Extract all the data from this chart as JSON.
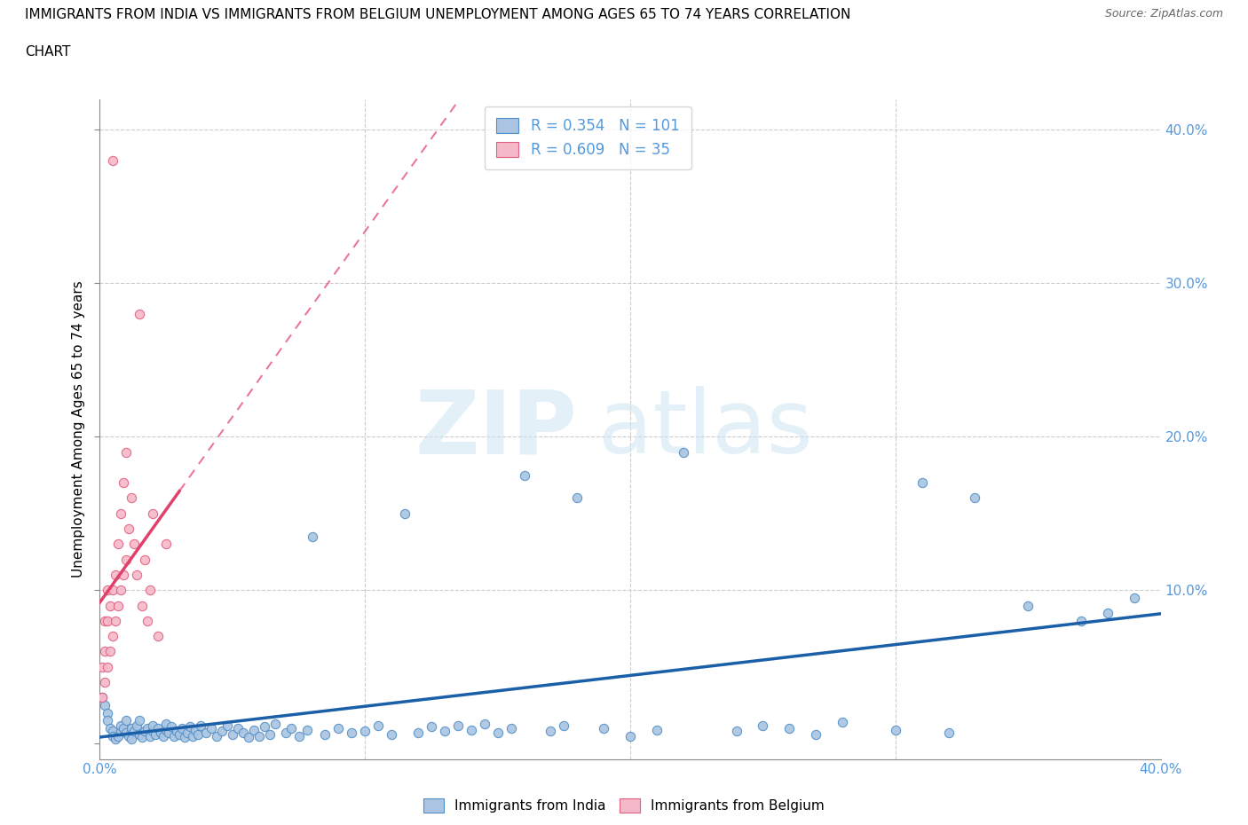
{
  "title_line1": "IMMIGRANTS FROM INDIA VS IMMIGRANTS FROM BELGIUM UNEMPLOYMENT AMONG AGES 65 TO 74 YEARS CORRELATION",
  "title_line2": "CHART",
  "source_text": "Source: ZipAtlas.com",
  "ylabel": "Unemployment Among Ages 65 to 74 years",
  "xlim": [
    0.0,
    0.4
  ],
  "ylim": [
    -0.01,
    0.42
  ],
  "india_R": 0.354,
  "india_N": 101,
  "belgium_R": 0.609,
  "belgium_N": 35,
  "india_color": "#aac4e2",
  "india_edge_color": "#5090c8",
  "india_line_color": "#1a5fa8",
  "belgium_color": "#f5b8c8",
  "belgium_edge_color": "#e06080",
  "belgium_line_color": "#e0406a",
  "grid_color": "#cccccc",
  "tick_color": "#5599dd",
  "india_x": [
    0.001,
    0.002,
    0.003,
    0.003,
    0.004,
    0.005,
    0.005,
    0.006,
    0.007,
    0.008,
    0.008,
    0.009,
    0.01,
    0.01,
    0.011,
    0.012,
    0.012,
    0.013,
    0.014,
    0.015,
    0.015,
    0.016,
    0.017,
    0.018,
    0.019,
    0.02,
    0.02,
    0.021,
    0.022,
    0.023,
    0.024,
    0.025,
    0.025,
    0.026,
    0.027,
    0.028,
    0.029,
    0.03,
    0.031,
    0.032,
    0.033,
    0.034,
    0.035,
    0.036,
    0.037,
    0.038,
    0.04,
    0.042,
    0.044,
    0.046,
    0.048,
    0.05,
    0.052,
    0.054,
    0.056,
    0.058,
    0.06,
    0.062,
    0.064,
    0.066,
    0.07,
    0.072,
    0.075,
    0.078,
    0.08,
    0.085,
    0.09,
    0.095,
    0.1,
    0.105,
    0.11,
    0.115,
    0.12,
    0.125,
    0.13,
    0.135,
    0.14,
    0.145,
    0.15,
    0.155,
    0.16,
    0.17,
    0.175,
    0.18,
    0.19,
    0.2,
    0.21,
    0.22,
    0.24,
    0.25,
    0.26,
    0.27,
    0.28,
    0.3,
    0.31,
    0.32,
    0.33,
    0.35,
    0.37,
    0.38,
    0.39
  ],
  "india_y": [
    0.03,
    0.025,
    0.02,
    0.015,
    0.01,
    0.008,
    0.005,
    0.003,
    0.005,
    0.008,
    0.012,
    0.01,
    0.007,
    0.015,
    0.005,
    0.01,
    0.003,
    0.008,
    0.012,
    0.006,
    0.015,
    0.004,
    0.008,
    0.01,
    0.005,
    0.008,
    0.012,
    0.006,
    0.01,
    0.007,
    0.005,
    0.009,
    0.013,
    0.007,
    0.011,
    0.005,
    0.008,
    0.006,
    0.01,
    0.004,
    0.007,
    0.011,
    0.005,
    0.009,
    0.006,
    0.012,
    0.007,
    0.01,
    0.005,
    0.008,
    0.012,
    0.006,
    0.01,
    0.007,
    0.004,
    0.009,
    0.005,
    0.011,
    0.006,
    0.013,
    0.007,
    0.01,
    0.005,
    0.009,
    0.135,
    0.006,
    0.01,
    0.007,
    0.008,
    0.012,
    0.006,
    0.15,
    0.007,
    0.011,
    0.008,
    0.012,
    0.009,
    0.013,
    0.007,
    0.01,
    0.175,
    0.008,
    0.012,
    0.16,
    0.01,
    0.005,
    0.009,
    0.19,
    0.008,
    0.012,
    0.01,
    0.006,
    0.014,
    0.009,
    0.17,
    0.007,
    0.16,
    0.09,
    0.08,
    0.085,
    0.095
  ],
  "belgium_x": [
    0.001,
    0.001,
    0.002,
    0.002,
    0.002,
    0.003,
    0.003,
    0.003,
    0.004,
    0.004,
    0.005,
    0.005,
    0.005,
    0.006,
    0.006,
    0.007,
    0.007,
    0.008,
    0.008,
    0.009,
    0.009,
    0.01,
    0.01,
    0.011,
    0.012,
    0.013,
    0.014,
    0.015,
    0.016,
    0.017,
    0.018,
    0.019,
    0.02,
    0.022,
    0.025
  ],
  "belgium_y": [
    0.03,
    0.05,
    0.04,
    0.06,
    0.08,
    0.05,
    0.08,
    0.1,
    0.06,
    0.09,
    0.07,
    0.1,
    0.38,
    0.08,
    0.11,
    0.09,
    0.13,
    0.1,
    0.15,
    0.11,
    0.17,
    0.12,
    0.19,
    0.14,
    0.16,
    0.13,
    0.11,
    0.28,
    0.09,
    0.12,
    0.08,
    0.1,
    0.15,
    0.07,
    0.13
  ]
}
